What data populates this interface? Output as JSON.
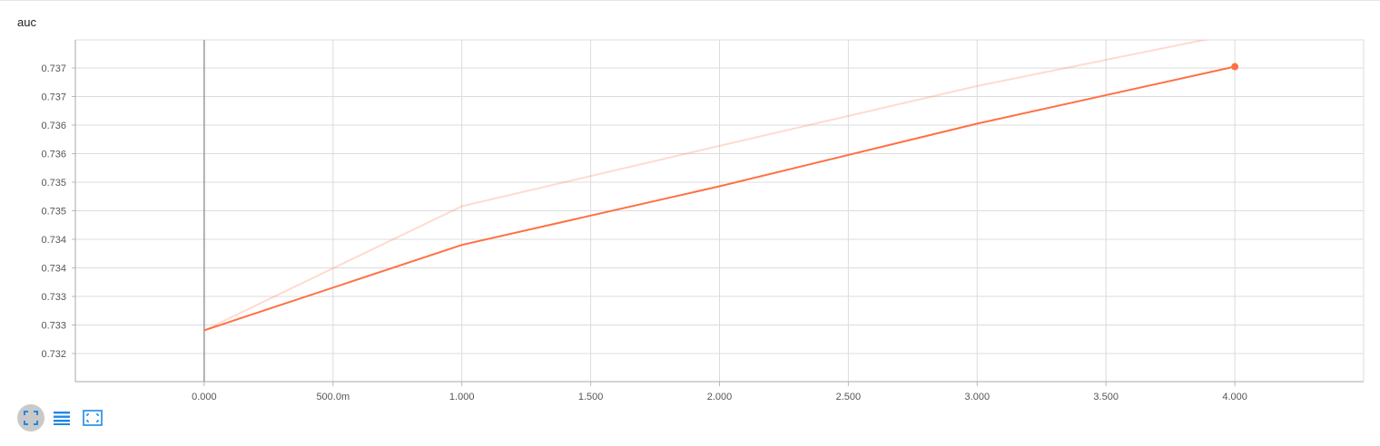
{
  "card": {
    "title": "auc"
  },
  "chart_data": {
    "type": "line",
    "title": "auc",
    "xlabel": "",
    "ylabel": "",
    "x_ticks": [
      "0.000",
      "500.0m",
      "1.000",
      "1.500",
      "2.000",
      "2.500",
      "3.000",
      "3.500",
      "4.000"
    ],
    "y_ticks": [
      "0.732",
      "0.733",
      "0.733",
      "0.734",
      "0.734",
      "0.735",
      "0.735",
      "0.736",
      "0.736",
      "0.737",
      "0.737"
    ],
    "xlim": [
      -0.5,
      4.5
    ],
    "ylim": [
      0.73175,
      0.73775
    ],
    "grid": true,
    "series": [
      {
        "x": [
          0,
          1,
          2,
          3,
          4
        ],
        "y": [
          0.73265,
          0.73483,
          0.73589,
          0.73694,
          0.73786
        ],
        "color": "#ff7043",
        "opacity": 0.25,
        "style": "raw"
      },
      {
        "x": [
          0,
          1,
          2,
          3,
          4
        ],
        "y": [
          0.73265,
          0.73415,
          0.73518,
          0.73628,
          0.73728
        ],
        "color": "#ff7043",
        "opacity": 1,
        "style": "smoothed",
        "end_marker": true
      }
    ]
  },
  "toolbar": {
    "buttons": [
      {
        "icon": "fullscreen-icon",
        "active": true
      },
      {
        "icon": "list-icon",
        "active": false
      },
      {
        "icon": "fit-domain-icon",
        "active": false
      }
    ]
  },
  "colors": {
    "accent": "#ff7043",
    "toolbar_icon": "#1e88e5",
    "grid": "#dddddd"
  }
}
